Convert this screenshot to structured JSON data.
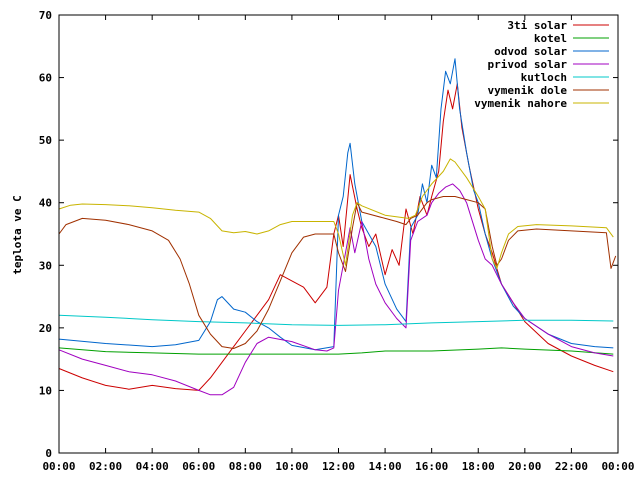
{
  "chart_data": {
    "type": "line",
    "ylabel": "teplota ve C",
    "xlabel": "",
    "ylim": [
      0,
      70
    ],
    "xlim_hours": [
      0,
      24
    ],
    "yticks": [
      0,
      10,
      20,
      30,
      40,
      50,
      60,
      70
    ],
    "xticks": [
      "00:00",
      "02:00",
      "04:00",
      "06:00",
      "08:00",
      "10:00",
      "12:00",
      "14:00",
      "16:00",
      "18:00",
      "20:00",
      "22:00",
      "00:00"
    ],
    "legend_position": "top-right",
    "grid": false,
    "series": [
      {
        "name": "3ti solar",
        "color": "#cc0000",
        "points": [
          [
            0,
            13.5
          ],
          [
            1,
            12
          ],
          [
            2,
            10.8
          ],
          [
            3,
            10.2
          ],
          [
            4,
            10.8
          ],
          [
            5,
            10.3
          ],
          [
            6,
            10
          ],
          [
            6.5,
            12
          ],
          [
            7,
            14.5
          ],
          [
            7.5,
            17
          ],
          [
            8,
            19.5
          ],
          [
            8.5,
            22
          ],
          [
            9,
            24.5
          ],
          [
            9.5,
            28.5
          ],
          [
            10,
            27.5
          ],
          [
            10.5,
            26.5
          ],
          [
            11,
            24
          ],
          [
            11.5,
            26.5
          ],
          [
            11.8,
            35
          ],
          [
            12,
            38
          ],
          [
            12.2,
            33
          ],
          [
            12.5,
            44.5
          ],
          [
            12.8,
            39
          ],
          [
            13,
            36
          ],
          [
            13.3,
            33
          ],
          [
            13.6,
            35
          ],
          [
            14,
            28.5
          ],
          [
            14.3,
            32.5
          ],
          [
            14.6,
            30
          ],
          [
            14.9,
            39
          ],
          [
            15.2,
            35
          ],
          [
            15.5,
            41
          ],
          [
            15.8,
            38
          ],
          [
            16,
            41
          ],
          [
            16.3,
            45
          ],
          [
            16.5,
            53
          ],
          [
            16.7,
            58
          ],
          [
            16.9,
            55
          ],
          [
            17.1,
            59
          ],
          [
            17.3,
            52
          ],
          [
            17.6,
            46
          ],
          [
            18,
            39
          ],
          [
            18.3,
            35
          ],
          [
            18.6,
            32
          ],
          [
            19,
            27
          ],
          [
            19.5,
            24
          ],
          [
            20,
            21
          ],
          [
            21,
            17.5
          ],
          [
            22,
            15.5
          ],
          [
            23,
            14
          ],
          [
            23.8,
            13
          ]
        ]
      },
      {
        "name": "kotel",
        "color": "#00a000",
        "points": [
          [
            0,
            16.8
          ],
          [
            2,
            16.2
          ],
          [
            4,
            16
          ],
          [
            6,
            15.8
          ],
          [
            8,
            15.8
          ],
          [
            10,
            15.8
          ],
          [
            12,
            15.8
          ],
          [
            13,
            16
          ],
          [
            14,
            16.3
          ],
          [
            16,
            16.3
          ],
          [
            18,
            16.6
          ],
          [
            19,
            16.8
          ],
          [
            20,
            16.6
          ],
          [
            22,
            16.3
          ],
          [
            23.8,
            15.8
          ]
        ]
      },
      {
        "name": "odvod solar",
        "color": "#0066cc",
        "points": [
          [
            0,
            18.2
          ],
          [
            2,
            17.5
          ],
          [
            4,
            17
          ],
          [
            5,
            17.3
          ],
          [
            6,
            18
          ],
          [
            6.5,
            21
          ],
          [
            6.8,
            24.5
          ],
          [
            7,
            25
          ],
          [
            7.5,
            23
          ],
          [
            8,
            22.5
          ],
          [
            8.5,
            21
          ],
          [
            9,
            20
          ],
          [
            9.5,
            18.5
          ],
          [
            10,
            17.2
          ],
          [
            11,
            16.5
          ],
          [
            11.8,
            17
          ],
          [
            12,
            38
          ],
          [
            12.2,
            41
          ],
          [
            12.4,
            48
          ],
          [
            12.5,
            49.5
          ],
          [
            12.7,
            43
          ],
          [
            13,
            37
          ],
          [
            13.3,
            35
          ],
          [
            13.6,
            33
          ],
          [
            14,
            27
          ],
          [
            14.5,
            23
          ],
          [
            14.9,
            21
          ],
          [
            15.1,
            36
          ],
          [
            15.4,
            38
          ],
          [
            15.6,
            43
          ],
          [
            15.8,
            40
          ],
          [
            16,
            46
          ],
          [
            16.2,
            44
          ],
          [
            16.4,
            55
          ],
          [
            16.6,
            61
          ],
          [
            16.8,
            59
          ],
          [
            17,
            63
          ],
          [
            17.2,
            55
          ],
          [
            17.5,
            48
          ],
          [
            17.8,
            42
          ],
          [
            18,
            40
          ],
          [
            18.3,
            35
          ],
          [
            18.6,
            31
          ],
          [
            19,
            27
          ],
          [
            19.5,
            23.5
          ],
          [
            20,
            21.5
          ],
          [
            21,
            19
          ],
          [
            22,
            17.5
          ],
          [
            23,
            17
          ],
          [
            23.8,
            16.8
          ]
        ]
      },
      {
        "name": "privod solar",
        "color": "#a000c0",
        "points": [
          [
            0,
            16.5
          ],
          [
            1,
            15
          ],
          [
            2,
            14
          ],
          [
            3,
            13
          ],
          [
            4,
            12.5
          ],
          [
            5,
            11.5
          ],
          [
            6,
            10
          ],
          [
            6.5,
            9.3
          ],
          [
            7,
            9.3
          ],
          [
            7.5,
            10.5
          ],
          [
            8,
            14.5
          ],
          [
            8.5,
            17.5
          ],
          [
            9,
            18.5
          ],
          [
            10,
            17.8
          ],
          [
            11,
            16.5
          ],
          [
            11.5,
            16.3
          ],
          [
            11.8,
            16.8
          ],
          [
            12,
            26
          ],
          [
            12.2,
            30
          ],
          [
            12.5,
            36
          ],
          [
            12.7,
            32
          ],
          [
            13,
            37
          ],
          [
            13.3,
            31
          ],
          [
            13.6,
            27
          ],
          [
            14,
            24
          ],
          [
            14.5,
            21.5
          ],
          [
            14.9,
            20
          ],
          [
            15.1,
            34
          ],
          [
            15.4,
            37
          ],
          [
            15.8,
            38
          ],
          [
            16,
            40
          ],
          [
            16.3,
            41.5
          ],
          [
            16.6,
            42.5
          ],
          [
            16.9,
            43
          ],
          [
            17.2,
            42
          ],
          [
            17.5,
            40
          ],
          [
            18,
            34
          ],
          [
            18.3,
            31
          ],
          [
            18.6,
            30
          ],
          [
            19,
            27
          ],
          [
            19.5,
            24
          ],
          [
            20,
            21.5
          ],
          [
            21,
            19
          ],
          [
            22,
            17
          ],
          [
            23,
            16
          ],
          [
            23.8,
            15.5
          ]
        ]
      },
      {
        "name": "kutloch",
        "color": "#00c8c8",
        "points": [
          [
            0,
            22
          ],
          [
            2,
            21.7
          ],
          [
            4,
            21.3
          ],
          [
            6,
            21
          ],
          [
            8,
            20.8
          ],
          [
            10,
            20.5
          ],
          [
            12,
            20.4
          ],
          [
            14,
            20.5
          ],
          [
            16,
            20.8
          ],
          [
            18,
            21
          ],
          [
            20,
            21.2
          ],
          [
            22,
            21.2
          ],
          [
            23.8,
            21.1
          ]
        ]
      },
      {
        "name": "vymenik dole",
        "color": "#a03000",
        "points": [
          [
            0,
            35
          ],
          [
            0.3,
            36.5
          ],
          [
            1,
            37.5
          ],
          [
            2,
            37.2
          ],
          [
            3,
            36.5
          ],
          [
            4,
            35.5
          ],
          [
            4.7,
            34
          ],
          [
            5.2,
            31
          ],
          [
            5.6,
            27
          ],
          [
            6,
            22
          ],
          [
            6.5,
            19
          ],
          [
            7,
            17
          ],
          [
            7.5,
            16.7
          ],
          [
            8,
            17.5
          ],
          [
            8.5,
            19.5
          ],
          [
            9,
            23
          ],
          [
            9.5,
            27.5
          ],
          [
            10,
            32
          ],
          [
            10.5,
            34.5
          ],
          [
            11,
            35
          ],
          [
            11.8,
            35
          ],
          [
            12,
            32
          ],
          [
            12.3,
            29
          ],
          [
            12.6,
            36
          ],
          [
            12.8,
            40
          ],
          [
            13,
            38.5
          ],
          [
            14,
            37.5
          ],
          [
            14.5,
            37
          ],
          [
            14.9,
            36.5
          ],
          [
            15.1,
            37.5
          ],
          [
            15.4,
            38
          ],
          [
            15.8,
            40
          ],
          [
            16,
            40.5
          ],
          [
            16.5,
            41
          ],
          [
            17,
            41
          ],
          [
            17.5,
            40.5
          ],
          [
            18,
            40
          ],
          [
            18.3,
            39
          ],
          [
            18.6,
            33
          ],
          [
            18.8,
            30
          ],
          [
            19,
            31
          ],
          [
            19.3,
            34
          ],
          [
            19.7,
            35.5
          ],
          [
            20.5,
            35.8
          ],
          [
            22,
            35.5
          ],
          [
            23.5,
            35.2
          ],
          [
            23.7,
            29.5
          ],
          [
            23.9,
            31.5
          ]
        ]
      },
      {
        "name": "vymenik nahore",
        "color": "#c8b400",
        "points": [
          [
            0,
            39
          ],
          [
            0.5,
            39.6
          ],
          [
            1,
            39.8
          ],
          [
            2,
            39.7
          ],
          [
            3,
            39.5
          ],
          [
            4,
            39.2
          ],
          [
            5,
            38.8
          ],
          [
            6,
            38.5
          ],
          [
            6.5,
            37.5
          ],
          [
            7,
            35.5
          ],
          [
            7.5,
            35.2
          ],
          [
            8,
            35.4
          ],
          [
            8.5,
            35
          ],
          [
            9,
            35.5
          ],
          [
            9.5,
            36.5
          ],
          [
            10,
            37
          ],
          [
            11,
            37
          ],
          [
            11.8,
            37
          ],
          [
            12,
            35
          ],
          [
            12.3,
            30
          ],
          [
            12.6,
            38
          ],
          [
            12.8,
            40
          ],
          [
            13,
            39.5
          ],
          [
            14,
            38
          ],
          [
            15,
            37.5
          ],
          [
            15.3,
            38
          ],
          [
            15.6,
            41
          ],
          [
            16,
            43
          ],
          [
            16.5,
            45
          ],
          [
            16.8,
            47
          ],
          [
            17,
            46.5
          ],
          [
            17.5,
            44
          ],
          [
            18,
            41
          ],
          [
            18.3,
            39
          ],
          [
            18.6,
            31
          ],
          [
            18.8,
            29.5
          ],
          [
            19,
            32
          ],
          [
            19.3,
            35
          ],
          [
            19.7,
            36.2
          ],
          [
            20.5,
            36.5
          ],
          [
            22,
            36.3
          ],
          [
            23.5,
            36
          ],
          [
            23.8,
            34.5
          ]
        ]
      }
    ]
  }
}
